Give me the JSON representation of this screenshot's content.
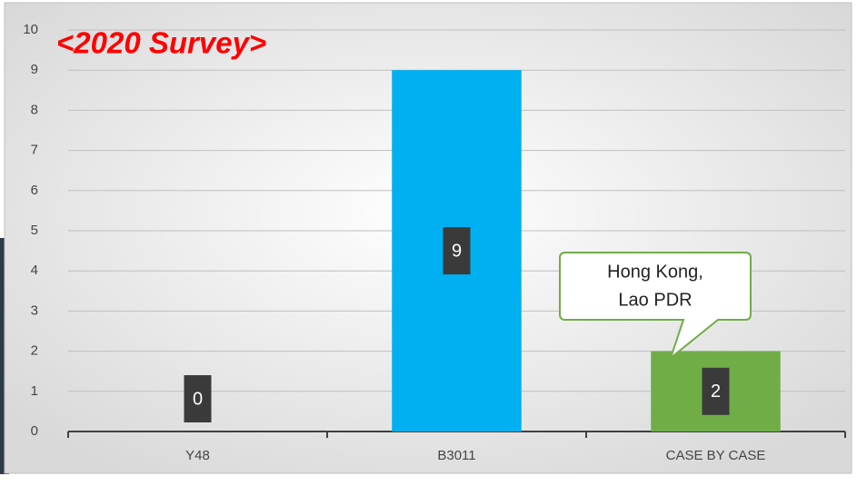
{
  "chart_data": {
    "type": "bar",
    "title": "<2020 Survey>",
    "categories": [
      "Y48",
      "B3011",
      "CASE BY CASE"
    ],
    "values": [
      0,
      9,
      2
    ],
    "colors": [
      "#a5a5a5",
      "#00b0f0",
      "#70ad47"
    ],
    "ylim": [
      0,
      10
    ],
    "yticks": [
      0,
      1,
      2,
      3,
      4,
      5,
      6,
      7,
      8,
      9,
      10
    ],
    "grid": true,
    "annotation": [
      "Hong Kong,",
      "Lao PDR"
    ]
  }
}
